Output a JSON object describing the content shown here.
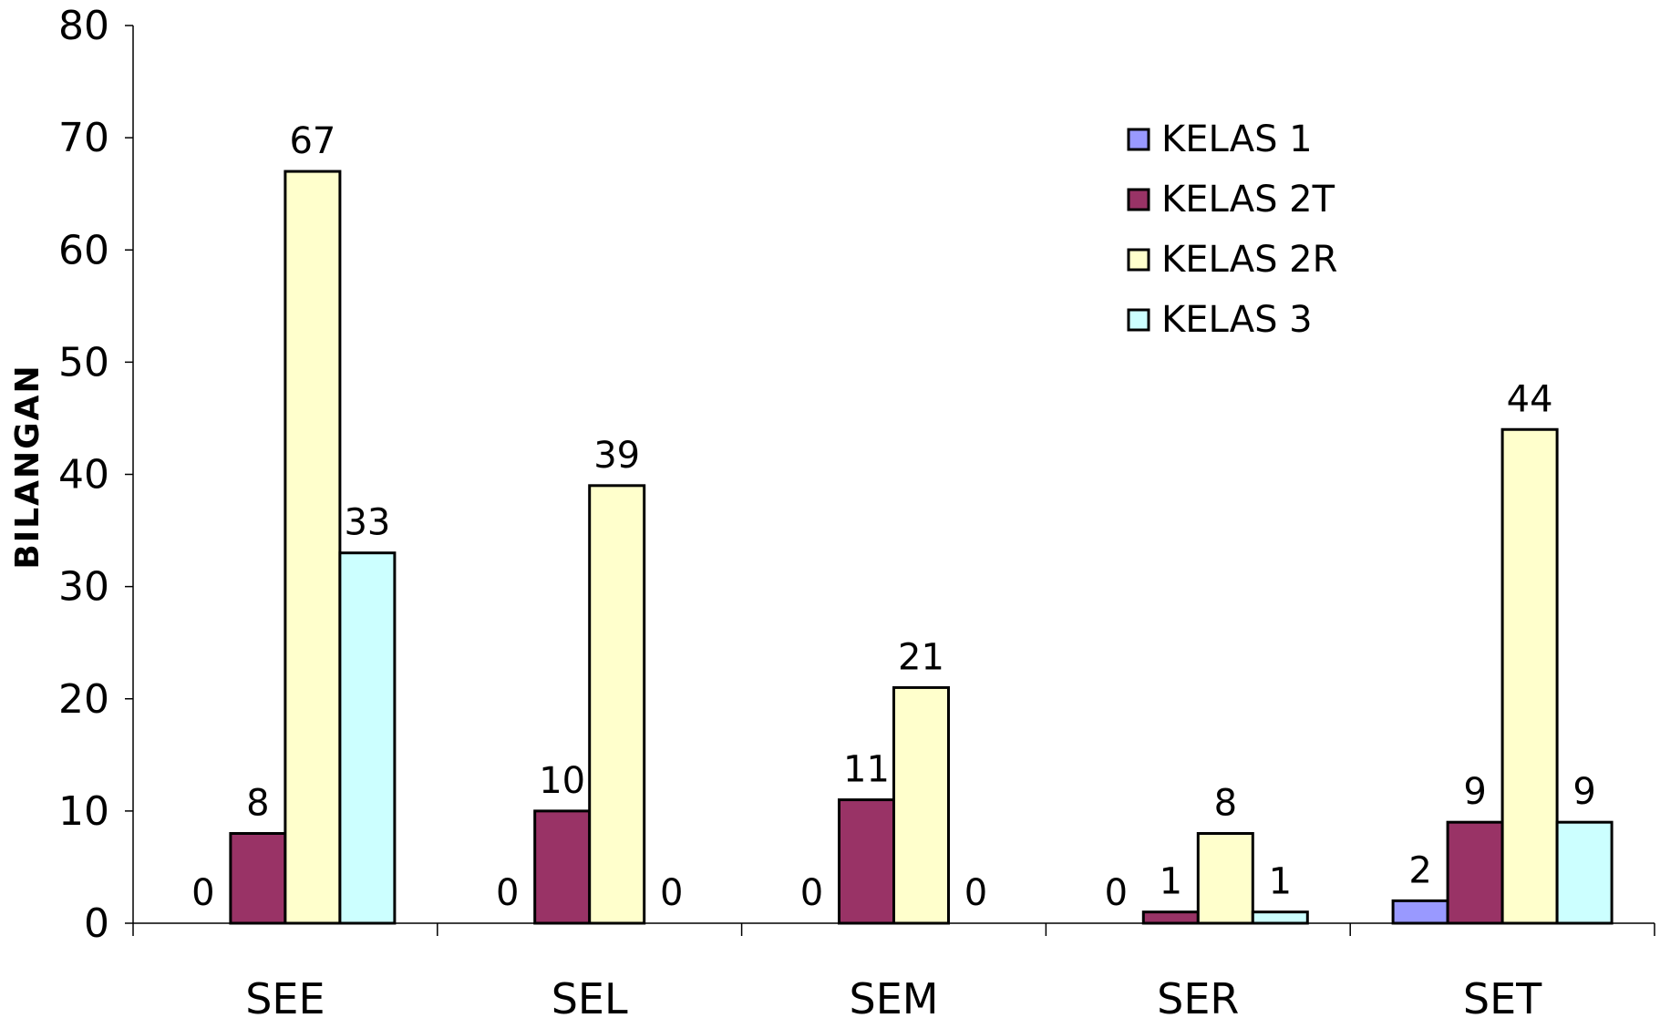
{
  "chart_data": {
    "type": "bar",
    "title": "",
    "xlabel": "",
    "ylabel": "BILANGAN",
    "ylim": [
      0,
      80
    ],
    "yticks": [
      0,
      10,
      20,
      30,
      40,
      50,
      60,
      70,
      80
    ],
    "grid": false,
    "legend_position": "top-right",
    "categories": [
      "SEE",
      "SEL",
      "SEM",
      "SER",
      "SET"
    ],
    "series": [
      {
        "name": "KELAS 1",
        "color": "#9999ff",
        "values": [
          0,
          0,
          0,
          0,
          2
        ]
      },
      {
        "name": "KELAS 2T",
        "color": "#993366",
        "values": [
          8,
          10,
          11,
          1,
          9
        ]
      },
      {
        "name": "KELAS 2R",
        "color": "#ffffcc",
        "values": [
          67,
          39,
          21,
          8,
          44
        ]
      },
      {
        "name": "KELAS 3",
        "color": "#ccffff",
        "values": [
          33,
          0,
          0,
          1,
          9
        ]
      }
    ]
  }
}
